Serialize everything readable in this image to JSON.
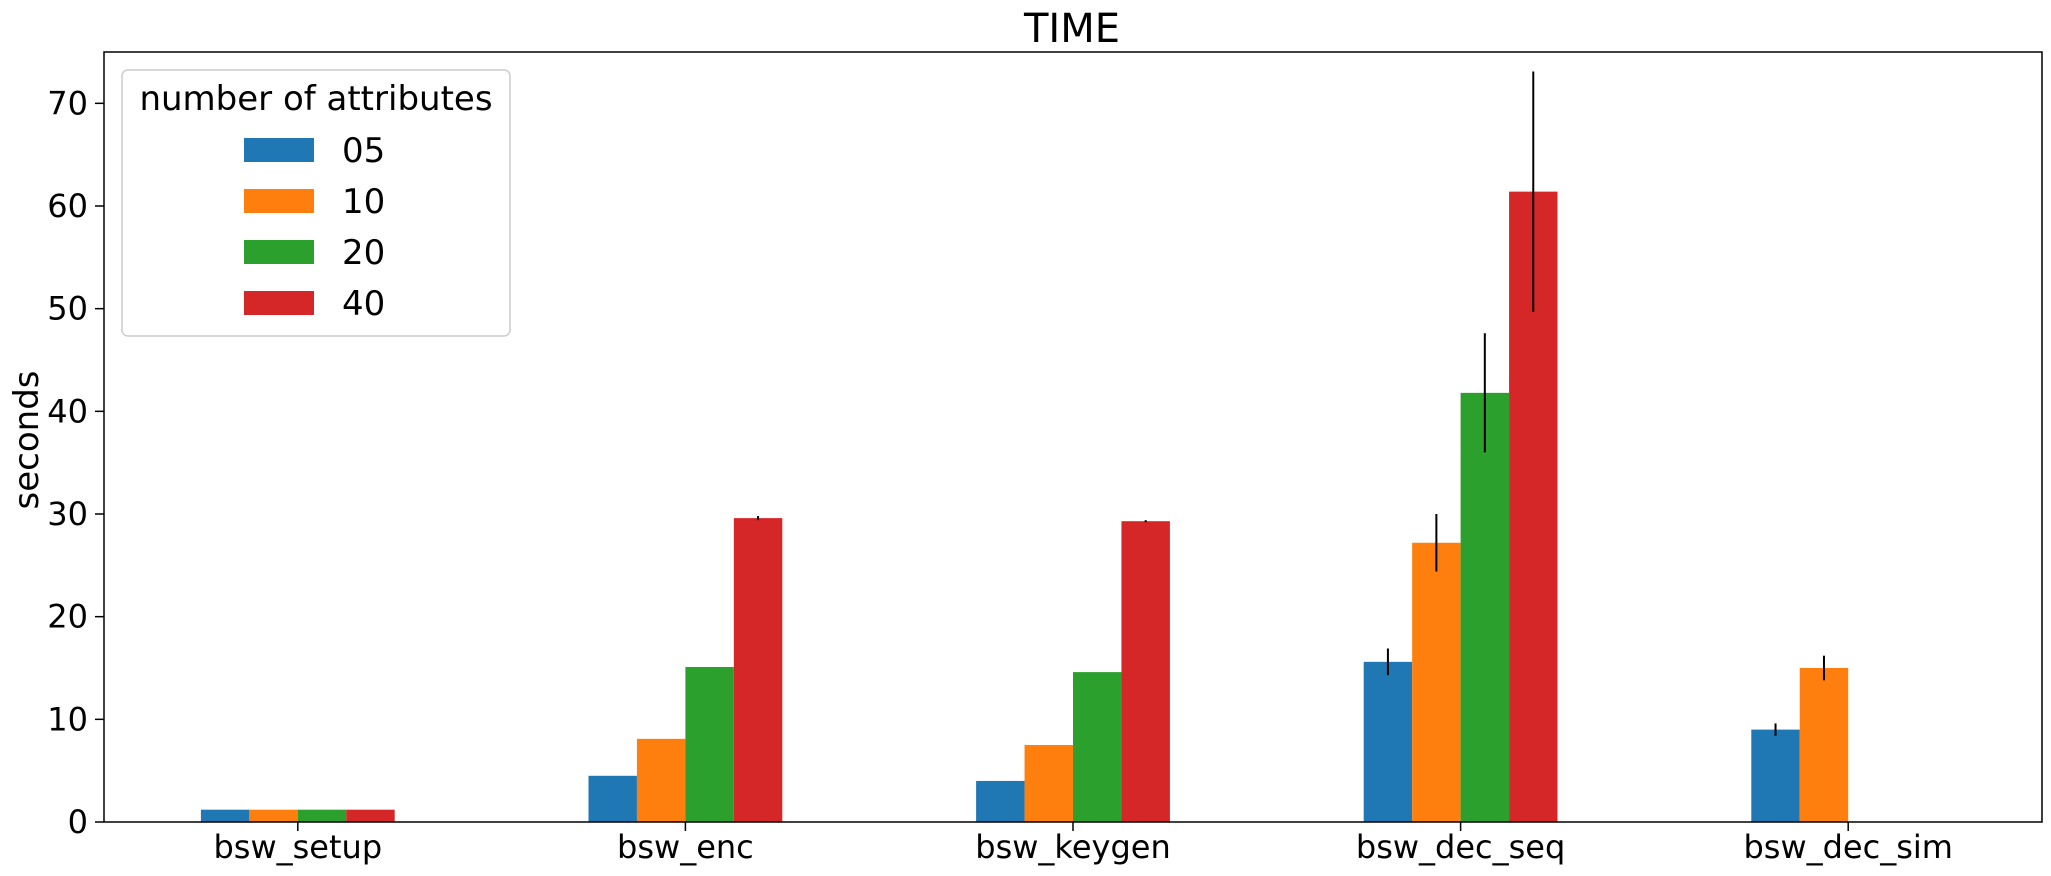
{
  "chart_data": {
    "type": "bar",
    "title": "TIME",
    "xlabel": "",
    "ylabel": "seconds",
    "ylim": [
      0,
      75
    ],
    "yticks": [
      0,
      10,
      20,
      30,
      40,
      50,
      60,
      70
    ],
    "grid": false,
    "legend": {
      "title": "number of attributes",
      "placement": "top-left"
    },
    "categories": [
      "bsw_setup",
      "bsw_enc",
      "bsw_keygen",
      "bsw_dec_seq",
      "bsw_dec_sim"
    ],
    "series": [
      {
        "name": "05",
        "color": "#1f77b4",
        "values": [
          1.2,
          4.5,
          4.0,
          15.6,
          9.0
        ],
        "errors": [
          0,
          0,
          0,
          1.3,
          0.6
        ]
      },
      {
        "name": "10",
        "color": "#ff7f0e",
        "values": [
          1.2,
          8.1,
          7.5,
          27.2,
          15.0
        ],
        "errors": [
          0,
          0,
          0,
          2.8,
          1.2
        ]
      },
      {
        "name": "20",
        "color": "#2ca02c",
        "values": [
          1.2,
          15.1,
          14.6,
          41.8,
          null
        ],
        "errors": [
          0,
          0,
          0,
          5.8,
          0
        ]
      },
      {
        "name": "40",
        "color": "#d62728",
        "values": [
          1.2,
          29.6,
          29.3,
          61.4,
          null
        ],
        "errors": [
          0,
          0.2,
          0.1,
          11.7,
          0
        ]
      }
    ]
  }
}
